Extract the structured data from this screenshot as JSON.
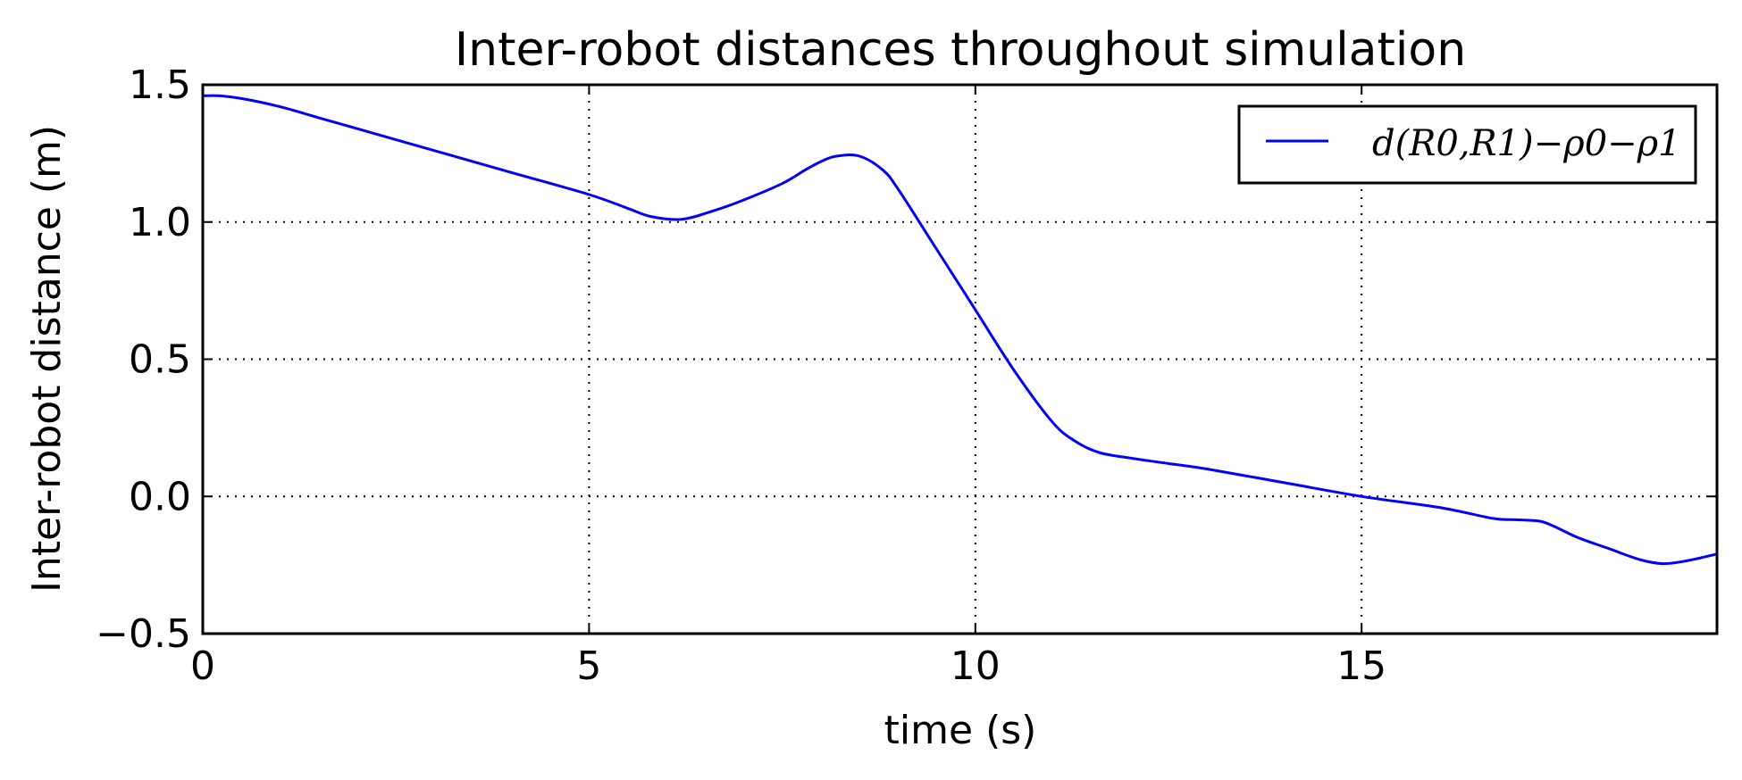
{
  "chart_data": {
    "type": "line",
    "title": "Inter-robot distances throughout simulation",
    "xlabel": "time (s)",
    "ylabel": "Inter-robot distance (m)",
    "xlim": [
      0,
      19.6
    ],
    "ylim": [
      -0.5,
      1.5
    ],
    "xticks": [
      0,
      5,
      10,
      15
    ],
    "xtick_labels": [
      "0",
      "5",
      "10",
      "15"
    ],
    "yticks": [
      -0.5,
      0.0,
      0.5,
      1.0,
      1.5
    ],
    "ytick_labels": [
      "−0.5",
      "0.0",
      "0.5",
      "1.0",
      "1.5"
    ],
    "grid": true,
    "legend_position": "top-right",
    "series": [
      {
        "name": "d(R0,R1)−ρ0−ρ1",
        "color": "#0000ff",
        "x": [
          0,
          0.2,
          0.5,
          1.0,
          1.5,
          2.0,
          3.0,
          4.0,
          5.0,
          5.5,
          5.8,
          6.2,
          6.6,
          7.0,
          7.5,
          7.8,
          8.0,
          8.2,
          8.5,
          8.8,
          9.0,
          9.5,
          10.0,
          10.5,
          11.0,
          11.3,
          11.6,
          12.0,
          12.5,
          13.0,
          14.0,
          15.0,
          16.0,
          16.7,
          17.0,
          17.3,
          17.5,
          17.8,
          18.2,
          18.6,
          18.9,
          19.2,
          19.6
        ],
        "y": [
          1.46,
          1.46,
          1.45,
          1.42,
          1.38,
          1.34,
          1.26,
          1.18,
          1.1,
          1.05,
          1.02,
          1.01,
          1.04,
          1.08,
          1.14,
          1.19,
          1.22,
          1.24,
          1.24,
          1.19,
          1.12,
          0.9,
          0.68,
          0.46,
          0.27,
          0.2,
          0.16,
          0.14,
          0.12,
          0.1,
          0.05,
          0.0,
          -0.04,
          -0.08,
          -0.085,
          -0.09,
          -0.11,
          -0.15,
          -0.19,
          -0.23,
          -0.245,
          -0.235,
          -0.21
        ]
      }
    ]
  }
}
